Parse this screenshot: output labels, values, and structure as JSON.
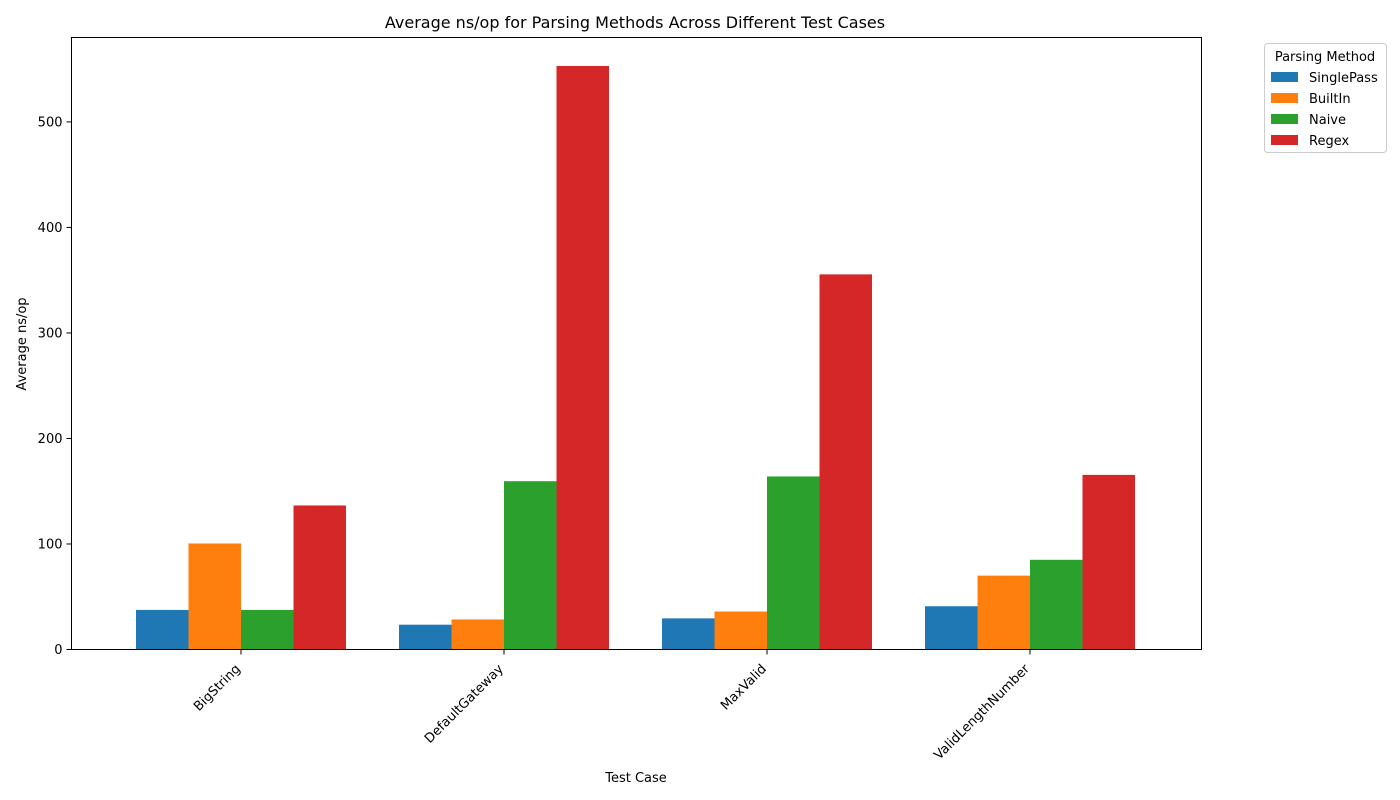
{
  "chart_data": {
    "type": "bar",
    "title": "Average ns/op for Parsing Methods Across Different Test Cases",
    "xlabel": "Test Case",
    "ylabel": "Average ns/op",
    "categories": [
      "BigString",
      "DefaultGateway",
      "MaxValid",
      "ValidLengthNumber"
    ],
    "series": [
      {
        "name": "SinglePass",
        "color": "#1f77b4",
        "values": [
          37.5,
          23.5,
          29.5,
          41
        ]
      },
      {
        "name": "BuiltIn",
        "color": "#ff7f0e",
        "values": [
          100.5,
          28.5,
          36,
          70
        ]
      },
      {
        "name": "Naive",
        "color": "#2ca02c",
        "values": [
          37.5,
          159.5,
          164,
          85
        ]
      },
      {
        "name": "Regex",
        "color": "#d62728",
        "values": [
          136.5,
          553,
          355.5,
          165.5
        ]
      }
    ],
    "ylim": [
      0,
      580
    ],
    "yticks": [
      0,
      100,
      200,
      300,
      400,
      500
    ],
    "legend": {
      "title": "Parsing Method",
      "position": "outside-top-right"
    },
    "grid": false
  }
}
